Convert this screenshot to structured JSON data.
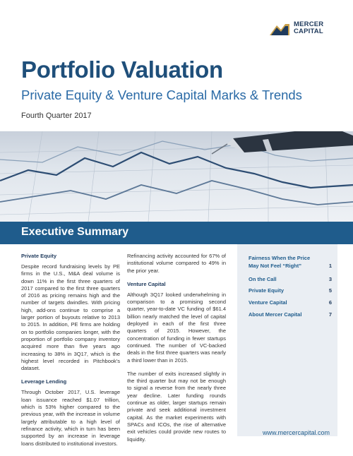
{
  "logo": {
    "line1": "MERCER",
    "line2": "CAPITAL"
  },
  "title": "Portfolio Valuation",
  "subtitle": "Private Equity & Venture Capital Marks & Trends",
  "period": "Fourth Quarter 2017",
  "banner": "Executive Summary",
  "col1": {
    "h1": "Private Equity",
    "p1": "Despite record fundraising levels by PE firms in the U.S., M&A deal volume is down 11% in the first three quarters of 2017 compared to the first three quarters of 2016 as pricing remains high and the number of targets dwindles. With pricing high, add-ons continue to comprise a larger portion of buyouts relative to 2013 to 2015. In addition, PE firms are holding on to portfolio companies longer, with the proportion of portfolio company inventory acquired more than five years ago increasing to 38% in 3Q17, which is the highest level recorded in Pitchbook's dataset.",
    "h2": "Leverage Lending",
    "p2": "Through October 2017, U.S. leverage loan issuance reached $1.07 trillion, which is 53% higher compared to the previous year, with the increase in volume largely attributable to a high level of refinance activity, which in turn has been supported by an increase in leverage loans distributed to institutional investors."
  },
  "col2": {
    "p0": "Refinancing activity accounted for 67% of institutional volume compared to 49% in the prior year.",
    "h1": "Venture Capital",
    "p1": "Although 3Q17 looked underwhelming in comparison to a promising second quarter, year-to-date VC funding of $61.4 billion nearly matched the level of capital deployed in each of the first three quarters of 2015. However, the concentration of funding in fewer startups continued. The number of VC-backed deals in the first three quarters was nearly a third lower than in 2015.",
    "p2": "The number of exits increased slightly in the third quarter but may not be enough to signal a reverse from the nearly three year decline. Later funding rounds continue as older, larger startups remain private and seek additional investment capital. As the market experiments with SPACs and ICOs, the rise of alternative exit vehicles could provide new routes to liquidity."
  },
  "toc": {
    "items": [
      {
        "label": "Fairness When the Price May Not Feel “Right”",
        "page": "1"
      },
      {
        "label": "On the Call",
        "page": "3"
      },
      {
        "label": "Private Equity",
        "page": "5"
      },
      {
        "label": "Venture Capital",
        "page": "6"
      },
      {
        "label": "About Mercer Capital",
        "page": "7"
      }
    ],
    "url": "www.mercercapital.com"
  },
  "colors": {
    "primary": "#1f5c8c",
    "title": "#1f4f7a",
    "subtitle": "#2a6aa6",
    "sidebar": "#eaeef3",
    "logo_gold": "#c9a04a"
  }
}
